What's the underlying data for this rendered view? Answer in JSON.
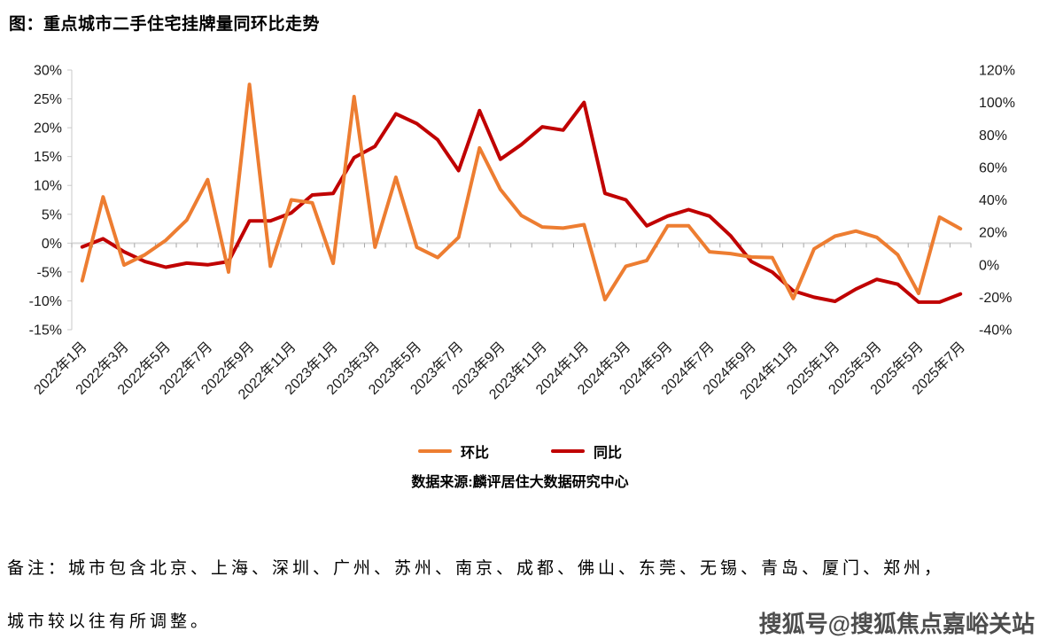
{
  "title": "图：重点城市二手住宅挂牌量同环比走势",
  "source": "数据来源:麟评居住大数据研究中心",
  "note": {
    "line1": "备注：城市包含北京、上海、深圳、广州、苏州、南京、成都、佛山、东莞、无锡、青岛、厦门、郑州，",
    "line2": "城市较以往有所调整。"
  },
  "watermark": "搜狐号@搜狐焦点嘉峪关站",
  "legend": [
    {
      "label": "环比",
      "color": "#ED7D31"
    },
    {
      "label": "同比",
      "color": "#C00000"
    }
  ],
  "colors": {
    "mom_line": "#ED7D31",
    "yoy_line": "#C00000",
    "axis_text": "#1a1a1a",
    "axis_line": "#c9c9c9",
    "zero_line": "#d9d9d9",
    "tick": "#a6a6a6"
  },
  "chart_data": {
    "type": "line",
    "title": "图：重点城市二手住宅挂牌量同环比走势",
    "legend_position": "bottom-center",
    "grid": "zero-line-only",
    "categories": [
      "2022年1月",
      "2022年2月",
      "2022年3月",
      "2022年4月",
      "2022年5月",
      "2022年6月",
      "2022年7月",
      "2022年8月",
      "2022年9月",
      "2022年10月",
      "2022年11月",
      "2022年12月",
      "2023年1月",
      "2023年2月",
      "2023年3月",
      "2023年4月",
      "2023年5月",
      "2023年6月",
      "2023年7月",
      "2023年8月",
      "2023年9月",
      "2023年10月",
      "2023年11月",
      "2023年12月",
      "2024年1月",
      "2024年2月",
      "2024年3月",
      "2024年4月",
      "2024年5月",
      "2024年6月",
      "2024年7月",
      "2024年8月",
      "2024年9月",
      "2024年10月",
      "2024年11月",
      "2024年12月",
      "2025年1月",
      "2025年2月",
      "2025年3月",
      "2025年4月",
      "2025年5月",
      "2025年6月",
      "2025年7月"
    ],
    "x_axis_shown_labels": [
      "2022年1月",
      "2022年3月",
      "2022年5月",
      "2022年7月",
      "2022年9月",
      "2022年11月",
      "2023年1月",
      "2023年3月",
      "2023年5月",
      "2023年7月",
      "2023年9月",
      "2023年11月",
      "2024年1月",
      "2024年3月",
      "2024年5月",
      "2024年7月",
      "2024年9月",
      "2024年11月",
      "2025年1月",
      "2025年3月",
      "2025年5月",
      "2025年7月"
    ],
    "series": [
      {
        "name": "环比",
        "axis": "left",
        "color": "#ED7D31",
        "values": [
          -6.5,
          8,
          -3.8,
          -2,
          0.5,
          4,
          11,
          -5,
          27.5,
          -4,
          7.5,
          7,
          -3.5,
          25.4,
          -0.7,
          11.4,
          -0.7,
          -2.5,
          1,
          16.5,
          9.3,
          4.8,
          2.8,
          2.6,
          3.2,
          -9.8,
          -4,
          -3,
          3,
          3,
          -1.5,
          -1.8,
          -2.4,
          -2.5,
          -9.6,
          -1,
          1.2,
          2.1,
          1,
          -2,
          -8.7,
          4.5,
          2.5
        ]
      },
      {
        "name": "同比",
        "axis": "right",
        "color": "#C00000",
        "values": [
          11,
          16,
          8,
          2,
          -1.5,
          1,
          0,
          2,
          27,
          27,
          32,
          43,
          44,
          66,
          73,
          93,
          87,
          77,
          58,
          95,
          65,
          74,
          85,
          83,
          100,
          44,
          40,
          24,
          30,
          34,
          30,
          18,
          2,
          -4.5,
          -16,
          -20,
          -22.5,
          -15,
          -9,
          -12,
          -23,
          -23,
          -18
        ]
      }
    ],
    "left_axis": {
      "min": -15,
      "max": 30,
      "tick_step": 5,
      "tick_labels": [
        "30%",
        "25%",
        "20%",
        "15%",
        "10%",
        "5%",
        "0%",
        "-5%",
        "-10%",
        "-15%"
      ]
    },
    "right_axis": {
      "min": -40,
      "max": 120,
      "tick_step": 20,
      "tick_labels": [
        "120%",
        "100%",
        "80%",
        "60%",
        "40%",
        "20%",
        "0%",
        "-20%",
        "-40%"
      ]
    }
  }
}
